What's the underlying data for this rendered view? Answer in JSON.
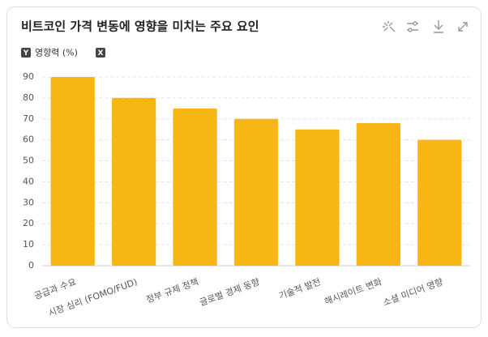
{
  "chart_data": {
    "type": "bar",
    "title": "비트코인 가격 변동에 영향을 미치는 주요 요인",
    "y_badge": "Y",
    "ylabel": "영향력 (%)",
    "x_badge": "X",
    "categories": [
      "공급과 수요",
      "시장 심리 (FOMO/FUD)",
      "정부 규제 정책",
      "글로벌 경제 동향",
      "기술적 발전",
      "해시레이트 변화",
      "소셜 미디어 영향"
    ],
    "values": [
      90,
      80,
      75,
      70,
      65,
      68,
      60
    ],
    "color": "#f7b614",
    "ylim": [
      0,
      90
    ],
    "yticks": [
      0,
      10,
      20,
      30,
      40,
      50,
      60,
      70,
      80,
      90
    ],
    "grid": true
  }
}
